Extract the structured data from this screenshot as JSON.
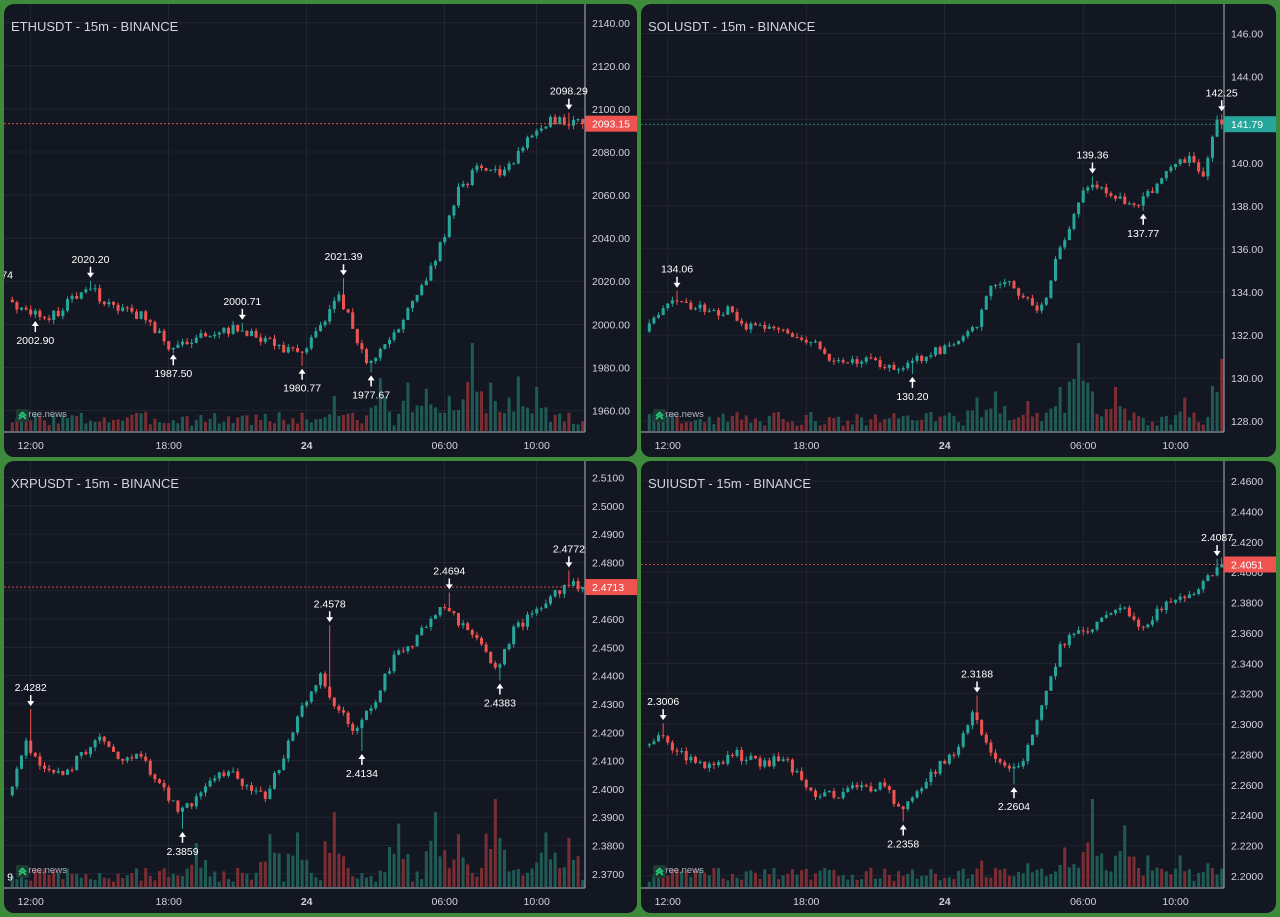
{
  "watermark": "© tree.news",
  "colors": {
    "up": "#26a69a",
    "down": "#ef5350",
    "up_vol": "#1f5a55",
    "down_vol": "#7a2e33",
    "bg": "#131722",
    "grid": "#2a2e39",
    "text": "#d1d4dc"
  },
  "icons": {
    "watermark": "tree-logo-icon",
    "arrow_high": "arrow-down-icon",
    "arrow_low": "arrow-up-icon"
  },
  "chart_data": [
    {
      "type": "candlestick",
      "title": "ETHUSDT - 15m - BINANCE",
      "ylim": [
        1950,
        2145
      ],
      "yticks": [
        "1960.00",
        "1980.00",
        "2000.00",
        "2020.00",
        "2040.00",
        "2060.00",
        "2080.00",
        "2100.00",
        "2120.00",
        "2140.00"
      ],
      "xticks": [
        {
          "label": "12:00",
          "bold": false
        },
        {
          "label": "18:00",
          "bold": false
        },
        {
          "label": "24",
          "bold": true
        },
        {
          "label": "06:00",
          "bold": false
        },
        {
          "label": "10:00",
          "bold": false
        }
      ],
      "last_price": {
        "value": 2093.15,
        "label": "2093.15",
        "color": "#ef5350"
      },
      "annotations": [
        {
          "label": "74",
          "kind": "high",
          "t": -1,
          "price": 2013
        },
        {
          "label": "2020.20",
          "kind": "high",
          "t": 17,
          "price": 2020.2
        },
        {
          "label": "2002.90",
          "kind": "low",
          "t": 5,
          "price": 2002.9
        },
        {
          "label": "1987.50",
          "kind": "low",
          "t": 35,
          "price": 1987.5
        },
        {
          "label": "2000.71",
          "kind": "high",
          "t": 50,
          "price": 2000.71
        },
        {
          "label": "1980.77",
          "kind": "low",
          "t": 63,
          "price": 1980.77
        },
        {
          "label": "2021.39",
          "kind": "high",
          "t": 72,
          "price": 2021.39
        },
        {
          "label": "1977.67",
          "kind": "low",
          "t": 78,
          "price": 1977.67
        },
        {
          "label": "2098.29",
          "kind": "high",
          "t": 121,
          "price": 2098.29
        }
      ],
      "path": [
        [
          0,
          2012
        ],
        [
          4,
          2006
        ],
        [
          10,
          2004
        ],
        [
          17,
          2018
        ],
        [
          24,
          2006
        ],
        [
          30,
          2004
        ],
        [
          35,
          1990
        ],
        [
          42,
          1994
        ],
        [
          50,
          1998
        ],
        [
          56,
          1992
        ],
        [
          63,
          1986
        ],
        [
          68,
          1998
        ],
        [
          72,
          2014
        ],
        [
          78,
          1982
        ],
        [
          84,
          1994
        ],
        [
          88,
          2010
        ],
        [
          93,
          2030
        ],
        [
          98,
          2062
        ],
        [
          103,
          2074
        ],
        [
          108,
          2070
        ],
        [
          113,
          2086
        ],
        [
          118,
          2094
        ],
        [
          123,
          2094
        ]
      ],
      "vol_spikes": [
        [
          70,
          0.4
        ],
        [
          80,
          0.6
        ],
        [
          86,
          0.55
        ],
        [
          90,
          0.48
        ],
        [
          95,
          0.4
        ],
        [
          100,
          1.0
        ],
        [
          104,
          0.55
        ],
        [
          110,
          0.62
        ],
        [
          114,
          0.5
        ]
      ]
    },
    {
      "type": "candlestick",
      "title": "SOLUSDT - 15m - BINANCE",
      "ylim": [
        127.5,
        147
      ],
      "yticks": [
        "128.00",
        "130.00",
        "132.00",
        "134.00",
        "136.00",
        "138.00",
        "140.00",
        "142.00",
        "144.00",
        "146.00"
      ],
      "xticks": [
        {
          "label": "12:00",
          "bold": false
        },
        {
          "label": "18:00",
          "bold": false
        },
        {
          "label": "24",
          "bold": true
        },
        {
          "label": "06:00",
          "bold": false
        },
        {
          "label": "10:00",
          "bold": false
        }
      ],
      "last_price": {
        "value": 141.79,
        "label": "141.79",
        "color": "#26a69a"
      },
      "annotations": [
        {
          "label": "134.06",
          "kind": "high",
          "t": 6,
          "price": 134.06
        },
        {
          "label": "130.20",
          "kind": "low",
          "t": 57,
          "price": 130.2
        },
        {
          "label": "139.36",
          "kind": "high",
          "t": 96,
          "price": 139.36
        },
        {
          "label": "137.77",
          "kind": "low",
          "t": 107,
          "price": 137.77
        },
        {
          "label": "142.25",
          "kind": "high",
          "t": 124,
          "price": 142.25
        }
      ],
      "path": [
        [
          0,
          132.2
        ],
        [
          6,
          133.6
        ],
        [
          12,
          133.2
        ],
        [
          18,
          133.1
        ],
        [
          22,
          132.4
        ],
        [
          28,
          132.4
        ],
        [
          34,
          132
        ],
        [
          40,
          131
        ],
        [
          46,
          130.8
        ],
        [
          52,
          130.6
        ],
        [
          57,
          130.6
        ],
        [
          62,
          131.2
        ],
        [
          68,
          131.6
        ],
        [
          72,
          132.4
        ],
        [
          74,
          134
        ],
        [
          78,
          134.6
        ],
        [
          82,
          133.6
        ],
        [
          86,
          133.2
        ],
        [
          90,
          136
        ],
        [
          94,
          138.2
        ],
        [
          96,
          139
        ],
        [
          101,
          138.6
        ],
        [
          104,
          138.2
        ],
        [
          107,
          138.2
        ],
        [
          110,
          138.6
        ],
        [
          114,
          139.8
        ],
        [
          118,
          140.2
        ],
        [
          121,
          139.6
        ],
        [
          124,
          141.8
        ]
      ],
      "vol_spikes": [
        [
          71,
          0.38
        ],
        [
          75,
          0.45
        ],
        [
          82,
          0.34
        ],
        [
          89,
          0.5
        ],
        [
          93,
          1.0
        ],
        [
          96,
          0.45
        ],
        [
          101,
          0.5
        ],
        [
          116,
          0.38
        ],
        [
          124,
          0.82
        ]
      ]
    },
    {
      "type": "candlestick",
      "title": "XRPUSDT - 15m - BINANCE",
      "ylim": [
        2.365,
        2.513
      ],
      "yticks": [
        "2.3700",
        "2.3800",
        "2.3900",
        "2.4000",
        "2.4100",
        "2.4200",
        "2.4300",
        "2.4400",
        "2.4500",
        "2.4600",
        "2.4700",
        "2.4800",
        "2.4900",
        "2.5000",
        "2.5100"
      ],
      "xticks": [
        {
          "label": "12:00",
          "bold": false
        },
        {
          "label": "18:00",
          "bold": false
        },
        {
          "label": "24",
          "bold": true
        },
        {
          "label": "06:00",
          "bold": false
        },
        {
          "label": "10:00",
          "bold": false
        }
      ],
      "last_price": {
        "value": 2.4713,
        "label": "2.4713",
        "color": "#ef5350"
      },
      "annotations": [
        {
          "label": "9",
          "kind": "low",
          "t": -1,
          "price": 2.3768
        },
        {
          "label": "2.4282",
          "kind": "high",
          "t": 4,
          "price": 2.4282
        },
        {
          "label": "2.3859",
          "kind": "low",
          "t": 37,
          "price": 2.3859
        },
        {
          "label": "2.4578",
          "kind": "high",
          "t": 69,
          "price": 2.4578
        },
        {
          "label": "2.4134",
          "kind": "low",
          "t": 76,
          "price": 2.4134
        },
        {
          "label": "2.4694",
          "kind": "high",
          "t": 95,
          "price": 2.4694
        },
        {
          "label": "2.4383",
          "kind": "low",
          "t": 106,
          "price": 2.4383
        },
        {
          "label": "2.4772",
          "kind": "high",
          "t": 121,
          "price": 2.4772
        }
      ],
      "path": [
        [
          0,
          2.398
        ],
        [
          4,
          2.416
        ],
        [
          8,
          2.408
        ],
        [
          12,
          2.404
        ],
        [
          16,
          2.412
        ],
        [
          20,
          2.418
        ],
        [
          24,
          2.41
        ],
        [
          28,
          2.412
        ],
        [
          32,
          2.405
        ],
        [
          37,
          2.392
        ],
        [
          42,
          2.398
        ],
        [
          47,
          2.406
        ],
        [
          52,
          2.402
        ],
        [
          56,
          2.396
        ],
        [
          60,
          2.412
        ],
        [
          64,
          2.428
        ],
        [
          68,
          2.44
        ],
        [
          72,
          2.428
        ],
        [
          76,
          2.42
        ],
        [
          80,
          2.432
        ],
        [
          84,
          2.446
        ],
        [
          88,
          2.452
        ],
        [
          92,
          2.46
        ],
        [
          95,
          2.464
        ],
        [
          100,
          2.456
        ],
        [
          103,
          2.452
        ],
        [
          106,
          2.442
        ],
        [
          110,
          2.456
        ],
        [
          114,
          2.462
        ],
        [
          118,
          2.468
        ],
        [
          122,
          2.472
        ]
      ],
      "vol_spikes": [
        [
          40,
          0.5
        ],
        [
          56,
          0.6
        ],
        [
          62,
          0.62
        ],
        [
          70,
          0.85
        ],
        [
          84,
          0.72
        ],
        [
          92,
          0.85
        ],
        [
          97,
          0.6
        ],
        [
          105,
          1.0
        ],
        [
          116,
          0.62
        ],
        [
          121,
          0.56
        ]
      ]
    },
    {
      "type": "candlestick",
      "title": "SUIUSDT - 15m - BINANCE",
      "ylim": [
        2.192,
        2.468
      ],
      "yticks": [
        "2.2000",
        "2.2200",
        "2.2400",
        "2.2600",
        "2.2800",
        "2.3000",
        "2.3200",
        "2.3400",
        "2.3600",
        "2.3800",
        "2.4000",
        "2.4200",
        "2.4400",
        "2.4600"
      ],
      "xticks": [
        {
          "label": "12:00",
          "bold": false
        },
        {
          "label": "18:00",
          "bold": false
        },
        {
          "label": "24",
          "bold": true
        },
        {
          "label": "06:00",
          "bold": false
        },
        {
          "label": "10:00",
          "bold": false
        }
      ],
      "last_price": {
        "value": 2.4051,
        "label": "2.4051",
        "color": "#ef5350"
      },
      "annotations": [
        {
          "label": "2.3006",
          "kind": "high",
          "t": 3,
          "price": 2.3006
        },
        {
          "label": "2.2358",
          "kind": "low",
          "t": 55,
          "price": 2.2358
        },
        {
          "label": "2.3188",
          "kind": "high",
          "t": 71,
          "price": 2.3188
        },
        {
          "label": "2.2604",
          "kind": "low",
          "t": 79,
          "price": 2.2604
        },
        {
          "label": "2.4087",
          "kind": "high",
          "t": 123,
          "price": 2.4087
        }
      ],
      "path": [
        [
          0,
          2.286
        ],
        [
          3,
          2.292
        ],
        [
          8,
          2.28
        ],
        [
          14,
          2.272
        ],
        [
          20,
          2.28
        ],
        [
          26,
          2.274
        ],
        [
          30,
          2.278
        ],
        [
          34,
          2.264
        ],
        [
          38,
          2.252
        ],
        [
          42,
          2.254
        ],
        [
          46,
          2.258
        ],
        [
          52,
          2.26
        ],
        [
          55,
          2.244
        ],
        [
          60,
          2.26
        ],
        [
          64,
          2.274
        ],
        [
          68,
          2.284
        ],
        [
          71,
          2.31
        ],
        [
          75,
          2.282
        ],
        [
          79,
          2.268
        ],
        [
          82,
          2.278
        ],
        [
          86,
          2.31
        ],
        [
          90,
          2.35
        ],
        [
          94,
          2.362
        ],
        [
          98,
          2.366
        ],
        [
          101,
          2.372
        ],
        [
          104,
          2.376
        ],
        [
          108,
          2.364
        ],
        [
          112,
          2.376
        ],
        [
          116,
          2.384
        ],
        [
          120,
          2.39
        ],
        [
          124,
          2.405
        ]
      ],
      "vol_spikes": [
        [
          72,
          0.3
        ],
        [
          82,
          0.27
        ],
        [
          90,
          0.45
        ],
        [
          96,
          1.0
        ],
        [
          103,
          0.7
        ],
        [
          108,
          0.36
        ],
        [
          115,
          0.36
        ],
        [
          121,
          0.27
        ]
      ]
    }
  ]
}
